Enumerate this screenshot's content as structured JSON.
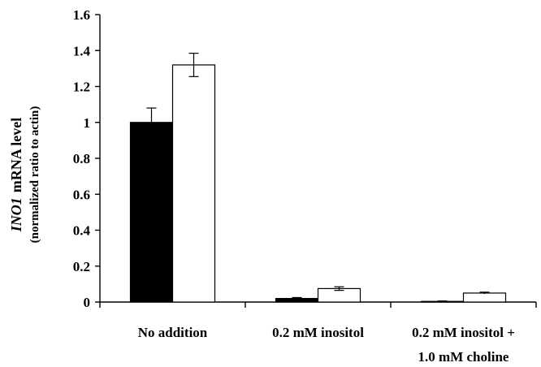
{
  "chart_data": {
    "type": "bar",
    "title": "",
    "xlabel": "",
    "ylabel": {
      "gene": "INO1",
      "line1_rest": "mRNA level",
      "line2": "(normalized ratio to actin)"
    },
    "categories": [
      [
        "No addition"
      ],
      [
        "0.2 mM inositol"
      ],
      [
        "0.2 mM inositol +",
        "1.0 mM choline"
      ]
    ],
    "series": [
      {
        "fill": "#000000",
        "values": [
          1.0,
          0.02,
          0.003
        ],
        "errors": [
          0.08,
          0.005,
          0.003
        ]
      },
      {
        "fill": "#ffffff",
        "values": [
          1.32,
          0.075,
          0.05
        ],
        "errors": [
          0.065,
          0.01,
          0.005
        ]
      }
    ],
    "ylim": [
      0,
      1.6
    ],
    "yticks": [
      "0",
      "0.2",
      "0.4",
      "0.6",
      "0.8",
      "1",
      "1.2",
      "1.4",
      "1.6"
    ],
    "grid": false,
    "legend": "none"
  }
}
